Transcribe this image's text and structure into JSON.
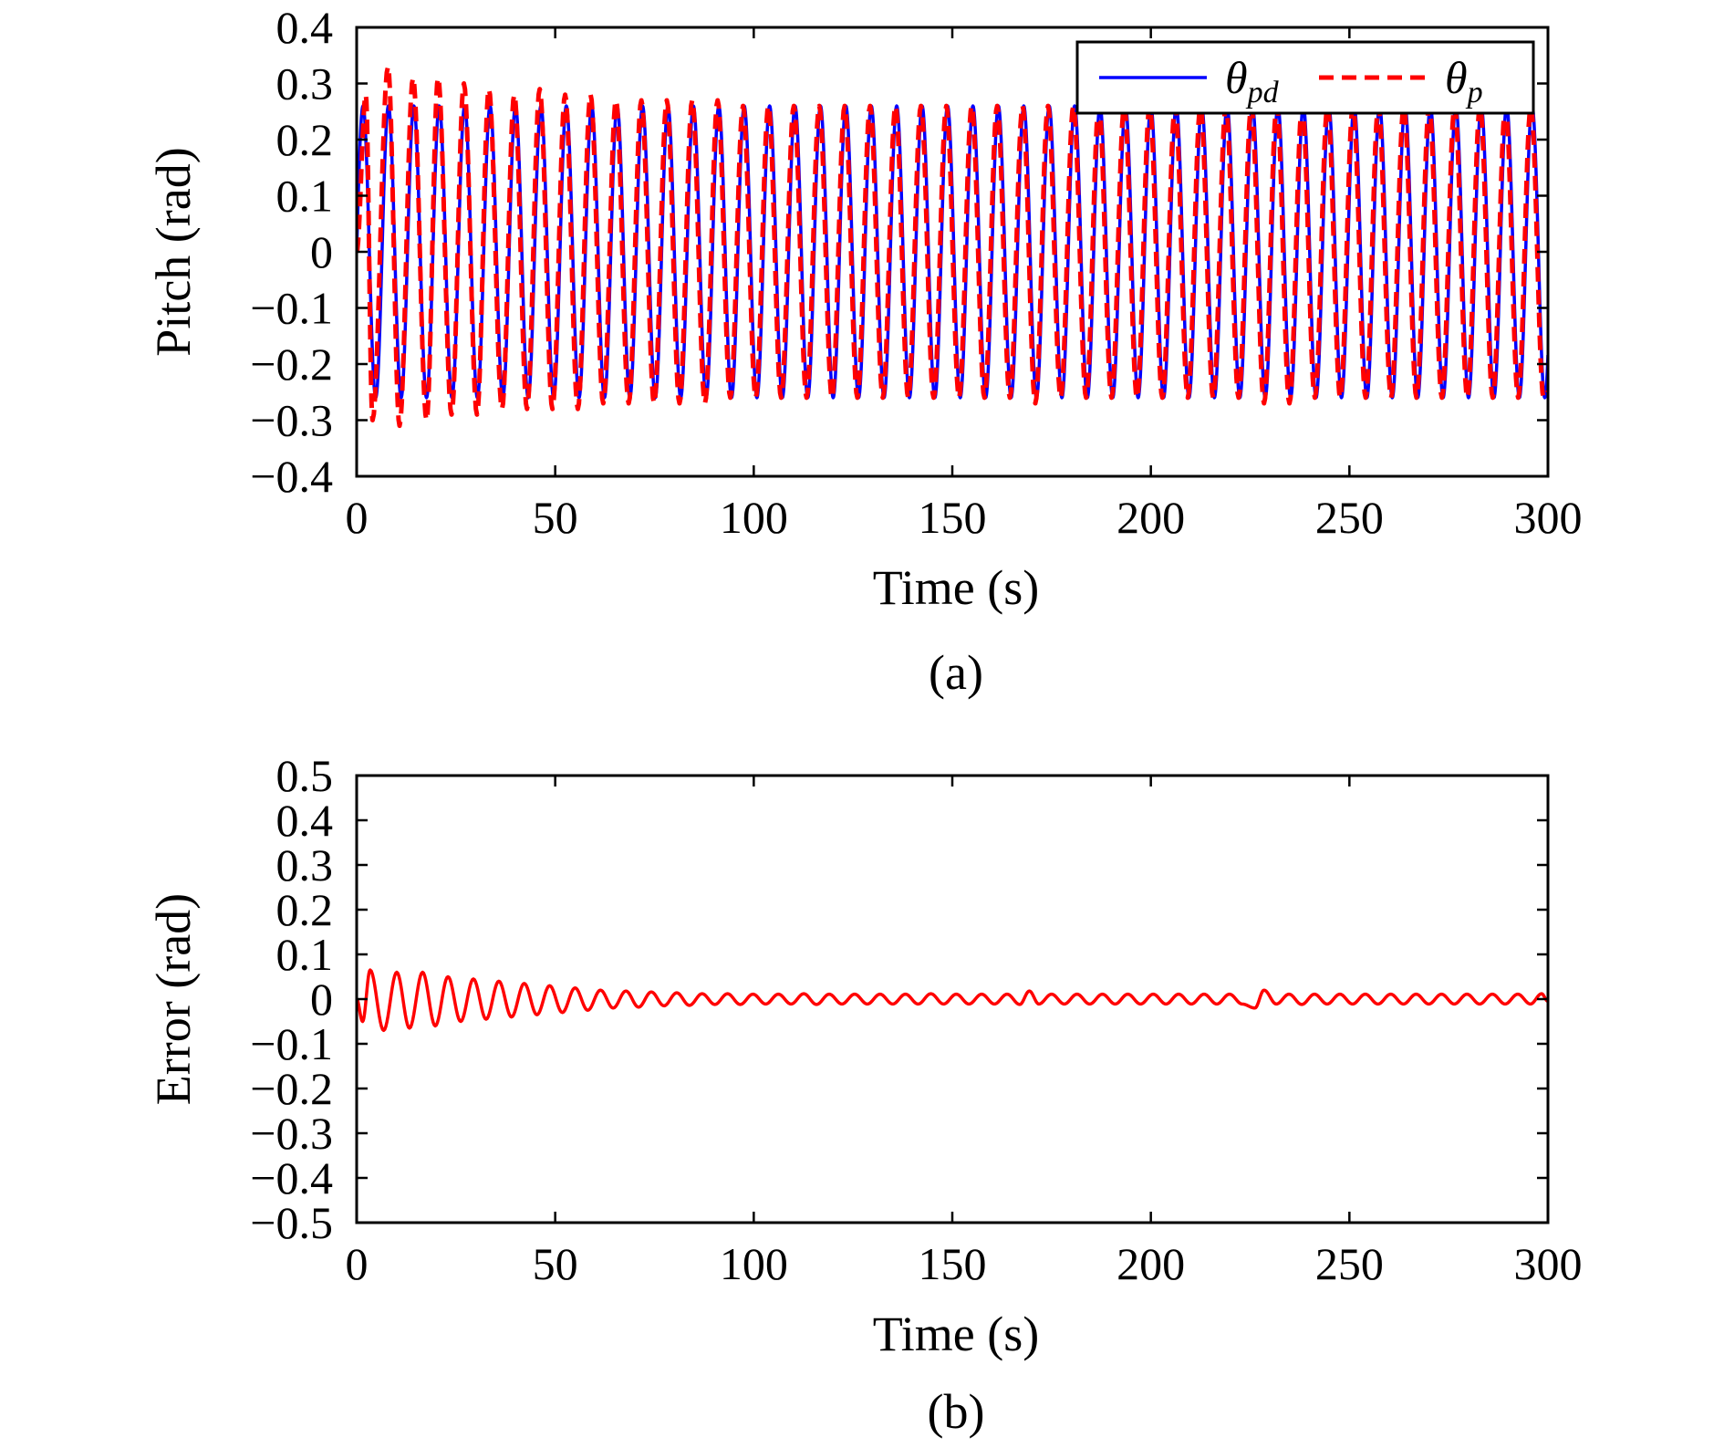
{
  "colors": {
    "theta_pd": "#0000ff",
    "theta_p": "#ff0000",
    "error": "#ff0000",
    "axis": "#000000"
  },
  "chart_data": [
    {
      "type": "line",
      "caption": "(a)",
      "xlabel": "Time (s)",
      "ylabel": "Pitch (rad)",
      "xlim": [
        0,
        300
      ],
      "ylim": [
        -0.4,
        0.4
      ],
      "xticks": [
        0,
        50,
        100,
        150,
        200,
        250,
        300
      ],
      "xtick_labels": [
        "0",
        "50",
        "100",
        "150",
        "200",
        "250",
        "300"
      ],
      "yticks": [
        0.4,
        0.3,
        0.2,
        0.1,
        0,
        -0.1,
        -0.2,
        -0.3,
        -0.4
      ],
      "ytick_labels": [
        "0.4",
        "0.3",
        "0.2",
        "0.1",
        "0",
        "−0.1",
        "−0.2",
        "−0.3",
        "−0.4"
      ],
      "grid": false,
      "legend_position": "top-right",
      "series": [
        {
          "name": "θ",
          "name_sub": "pd",
          "style": "solid",
          "color": "#0000ff",
          "description": "sinusoid, amplitude 0.26 rad, period 6.4 s",
          "amplitude": 0.26,
          "period_s": 6.4
        },
        {
          "name": "θ",
          "name_sub": "p",
          "style": "dashed",
          "color": "#ff0000",
          "points": [
            [
              0,
              0
            ],
            [
              2.3,
              0.28
            ],
            [
              4.0,
              -0.3
            ],
            [
              7.9,
              0.33
            ],
            [
              10.8,
              -0.31
            ],
            [
              14.2,
              0.31
            ],
            [
              17.6,
              -0.3
            ],
            [
              20.5,
              0.31
            ],
            [
              23.9,
              -0.29
            ],
            [
              27.0,
              0.3
            ],
            [
              30.3,
              -0.29
            ],
            [
              33.3,
              0.29
            ],
            [
              36.6,
              -0.28
            ],
            [
              39.7,
              0.28
            ],
            [
              42.9,
              -0.28
            ],
            [
              46.1,
              0.29
            ],
            [
              49.3,
              -0.28
            ],
            [
              52.5,
              0.28
            ],
            [
              55.7,
              -0.28
            ],
            [
              58.9,
              0.28
            ],
            [
              62.1,
              -0.27
            ],
            [
              65.3,
              0.27
            ],
            [
              68.5,
              -0.27
            ],
            [
              71.7,
              0.27
            ],
            [
              74.9,
              -0.27
            ],
            [
              78.1,
              0.27
            ],
            [
              81.3,
              -0.27
            ],
            [
              84.5,
              0.27
            ],
            [
              87.7,
              -0.27
            ],
            [
              90.9,
              0.27
            ],
            [
              94.1,
              -0.26
            ],
            [
              97.3,
              0.26
            ],
            [
              100.5,
              -0.26
            ],
            [
              103.7,
              0.26
            ],
            [
              106.9,
              -0.26
            ],
            [
              110.1,
              0.26
            ],
            [
              113.3,
              -0.26
            ],
            [
              116.5,
              0.26
            ],
            [
              119.7,
              -0.26
            ],
            [
              122.9,
              0.26
            ],
            [
              126.1,
              -0.26
            ],
            [
              129.3,
              0.26
            ],
            [
              132.5,
              -0.26
            ],
            [
              135.7,
              0.26
            ],
            [
              138.9,
              -0.26
            ],
            [
              142.1,
              0.26
            ],
            [
              145.3,
              -0.26
            ],
            [
              148.5,
              0.26
            ],
            [
              151.7,
              -0.26
            ],
            [
              154.9,
              0.26
            ],
            [
              158.1,
              -0.26
            ],
            [
              161.3,
              0.26
            ],
            [
              164.5,
              -0.26
            ],
            [
              167.7,
              0.26
            ],
            [
              170.9,
              -0.27
            ],
            [
              174.1,
              0.26
            ],
            [
              177.3,
              -0.26
            ],
            [
              180.5,
              0.26
            ],
            [
              183.7,
              -0.26
            ],
            [
              186.9,
              0.26
            ],
            [
              190.1,
              -0.26
            ],
            [
              193.3,
              0.26
            ],
            [
              196.5,
              -0.26
            ],
            [
              199.7,
              0.26
            ],
            [
              202.9,
              -0.26
            ],
            [
              206.1,
              0.26
            ],
            [
              209.3,
              -0.26
            ],
            [
              212.5,
              0.26
            ],
            [
              215.7,
              -0.26
            ],
            [
              218.9,
              0.26
            ],
            [
              222.1,
              -0.26
            ],
            [
              225.3,
              0.26
            ],
            [
              228.5,
              -0.27
            ],
            [
              231.7,
              0.26
            ],
            [
              234.9,
              -0.27
            ],
            [
              238.1,
              0.26
            ],
            [
              241.3,
              -0.26
            ],
            [
              244.5,
              0.26
            ],
            [
              247.7,
              -0.26
            ],
            [
              250.9,
              0.26
            ],
            [
              254.1,
              -0.26
            ],
            [
              257.3,
              0.26
            ],
            [
              260.5,
              -0.26
            ],
            [
              263.7,
              0.26
            ],
            [
              266.9,
              -0.26
            ],
            [
              270.1,
              0.26
            ],
            [
              273.3,
              -0.26
            ],
            [
              276.5,
              0.26
            ],
            [
              279.7,
              -0.26
            ],
            [
              282.9,
              0.26
            ],
            [
              286.1,
              -0.26
            ],
            [
              289.3,
              0.26
            ],
            [
              292.5,
              -0.26
            ],
            [
              295.7,
              0.26
            ],
            [
              298.9,
              -0.26
            ],
            [
              300,
              -0.25
            ]
          ]
        }
      ]
    },
    {
      "type": "line",
      "caption": "(b)",
      "xlabel": "Time (s)",
      "ylabel": "Error (rad)",
      "xlim": [
        0,
        300
      ],
      "ylim": [
        -0.5,
        0.5
      ],
      "xticks": [
        0,
        50,
        100,
        150,
        200,
        250,
        300
      ],
      "xtick_labels": [
        "0",
        "50",
        "100",
        "150",
        "200",
        "250",
        "300"
      ],
      "yticks": [
        0.5,
        0.4,
        0.3,
        0.2,
        0.1,
        0,
        -0.1,
        -0.2,
        -0.3,
        -0.4,
        -0.5
      ],
      "ytick_labels": [
        "0.5",
        "0.4",
        "0.3",
        "0.2",
        "0.1",
        "0",
        "−0.1",
        "−0.2",
        "−0.3",
        "−0.4",
        "−0.5"
      ],
      "grid": false,
      "series": [
        {
          "style": "solid",
          "color": "#ff0000",
          "points": [
            [
              0,
              0
            ],
            [
              1.5,
              -0.05
            ],
            [
              3.4,
              0.065
            ],
            [
              6.8,
              -0.07
            ],
            [
              10.1,
              0.06
            ],
            [
              13.3,
              -0.065
            ],
            [
              16.6,
              0.06
            ],
            [
              19.8,
              -0.06
            ],
            [
              23.0,
              0.05
            ],
            [
              26.2,
              -0.05
            ],
            [
              29.4,
              0.045
            ],
            [
              32.6,
              -0.045
            ],
            [
              35.8,
              0.04
            ],
            [
              39.0,
              -0.04
            ],
            [
              42.2,
              0.035
            ],
            [
              45.4,
              -0.035
            ],
            [
              48.6,
              0.03
            ],
            [
              51.8,
              -0.03
            ],
            [
              55.0,
              0.025
            ],
            [
              58.2,
              -0.025
            ],
            [
              61.4,
              0.02
            ],
            [
              64.6,
              -0.02
            ],
            [
              67.8,
              0.018
            ],
            [
              71.0,
              -0.018
            ],
            [
              74.2,
              0.016
            ],
            [
              77.4,
              -0.015
            ],
            [
              80.6,
              0.014
            ],
            [
              83.8,
              -0.014
            ],
            [
              87.0,
              0.012
            ],
            [
              90.2,
              -0.012
            ],
            [
              93.4,
              0.012
            ],
            [
              96.6,
              -0.012
            ],
            [
              99.8,
              0.011
            ],
            [
              103.0,
              -0.011
            ],
            [
              106.2,
              0.011
            ],
            [
              109.4,
              -0.011
            ],
            [
              112.6,
              0.012
            ],
            [
              115.8,
              -0.012
            ],
            [
              119.0,
              0.011
            ],
            [
              122.2,
              -0.011
            ],
            [
              125.4,
              0.011
            ],
            [
              128.6,
              -0.011
            ],
            [
              131.8,
              0.011
            ],
            [
              135.0,
              -0.011
            ],
            [
              138.2,
              0.011
            ],
            [
              141.4,
              -0.011
            ],
            [
              144.6,
              0.012
            ],
            [
              147.8,
              -0.011
            ],
            [
              151.0,
              0.011
            ],
            [
              154.2,
              -0.011
            ],
            [
              157.4,
              0.011
            ],
            [
              160.6,
              -0.011
            ],
            [
              163.8,
              0.011
            ],
            [
              167.0,
              -0.012
            ],
            [
              169.4,
              0.018
            ],
            [
              171.8,
              -0.011
            ],
            [
              175.0,
              0.011
            ],
            [
              178.2,
              -0.011
            ],
            [
              181.4,
              0.011
            ],
            [
              184.6,
              -0.011
            ],
            [
              187.8,
              0.011
            ],
            [
              191.0,
              -0.011
            ],
            [
              194.2,
              0.011
            ],
            [
              197.4,
              -0.011
            ],
            [
              200.6,
              0.011
            ],
            [
              203.8,
              -0.011
            ],
            [
              207.0,
              0.011
            ],
            [
              210.2,
              -0.011
            ],
            [
              213.4,
              0.011
            ],
            [
              216.6,
              -0.011
            ],
            [
              219.8,
              0.011
            ],
            [
              223.0,
              -0.011
            ],
            [
              226.2,
              -0.02
            ],
            [
              228.5,
              0.02
            ],
            [
              231.6,
              -0.011
            ],
            [
              234.8,
              0.011
            ],
            [
              238.0,
              -0.012
            ],
            [
              241.2,
              0.011
            ],
            [
              244.4,
              -0.011
            ],
            [
              247.6,
              0.011
            ],
            [
              250.8,
              -0.011
            ],
            [
              254.0,
              0.011
            ],
            [
              257.2,
              -0.011
            ],
            [
              260.4,
              0.011
            ],
            [
              263.6,
              -0.011
            ],
            [
              266.8,
              0.011
            ],
            [
              270.0,
              -0.011
            ],
            [
              273.2,
              0.011
            ],
            [
              276.4,
              -0.011
            ],
            [
              279.6,
              0.011
            ],
            [
              282.8,
              -0.011
            ],
            [
              286.0,
              0.011
            ],
            [
              289.2,
              -0.011
            ],
            [
              292.4,
              0.011
            ],
            [
              295.6,
              -0.011
            ],
            [
              298.4,
              0.012
            ],
            [
              300,
              -0.005
            ]
          ]
        }
      ]
    }
  ]
}
